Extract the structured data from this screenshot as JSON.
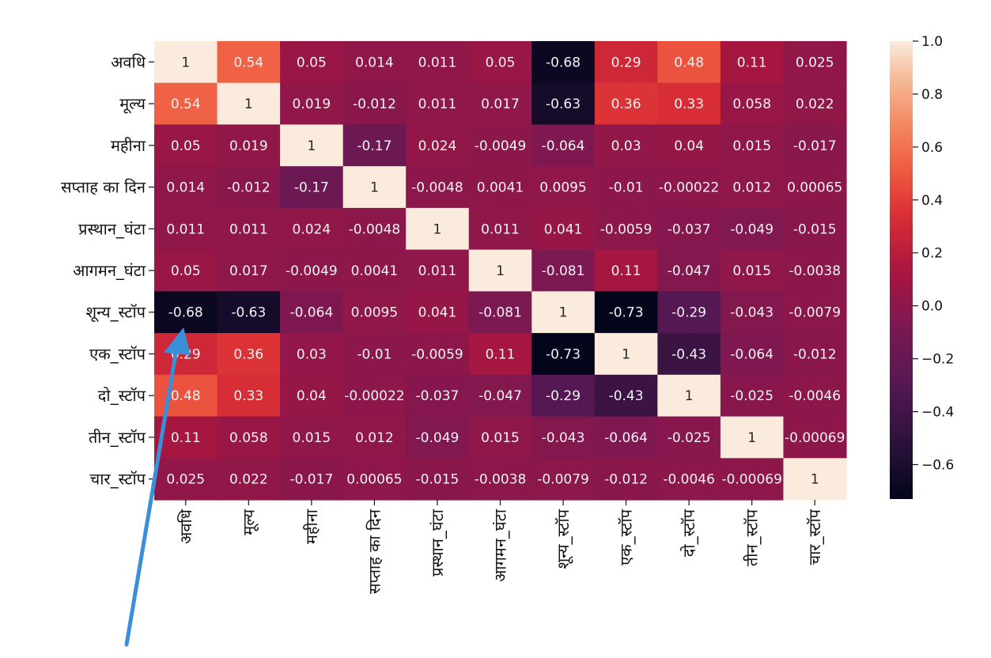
{
  "chart_data": {
    "type": "heatmap",
    "labels": [
      "अवधि",
      "मूल्य",
      "महीना",
      "सप्ताह का दिन",
      "प्रस्थान_घंटा",
      "आगमन_घंटा",
      "शून्य_स्टॉप",
      "एक_स्टॉप",
      "दो_स्टॉप",
      "तीन_स्टॉप",
      "चार_स्टॉप"
    ],
    "values": [
      [
        1,
        0.54,
        0.05,
        0.014,
        0.011,
        0.05,
        -0.68,
        0.29,
        0.48,
        0.11,
        0.025
      ],
      [
        0.54,
        1,
        0.019,
        -0.012,
        0.011,
        0.017,
        -0.63,
        0.36,
        0.33,
        0.058,
        0.022
      ],
      [
        0.05,
        0.019,
        1,
        -0.17,
        0.024,
        -0.0049,
        -0.064,
        0.03,
        0.04,
        0.015,
        -0.017
      ],
      [
        0.014,
        -0.012,
        -0.17,
        1,
        -0.0048,
        0.0041,
        0.0095,
        -0.01,
        -0.00022,
        0.012,
        0.00065
      ],
      [
        0.011,
        0.011,
        0.024,
        -0.0048,
        1,
        0.011,
        0.041,
        -0.0059,
        -0.037,
        -0.049,
        -0.015
      ],
      [
        0.05,
        0.017,
        -0.0049,
        0.0041,
        0.011,
        1,
        -0.081,
        0.11,
        -0.047,
        0.015,
        -0.0038
      ],
      [
        -0.68,
        -0.63,
        -0.064,
        0.0095,
        0.041,
        -0.081,
        1,
        -0.73,
        -0.29,
        -0.043,
        -0.0079
      ],
      [
        0.29,
        0.36,
        0.03,
        -0.01,
        -0.0059,
        0.11,
        -0.73,
        1,
        -0.43,
        -0.064,
        -0.012
      ],
      [
        0.48,
        0.33,
        0.04,
        -0.00022,
        -0.037,
        -0.047,
        -0.29,
        -0.43,
        1,
        -0.025,
        -0.0046
      ],
      [
        0.11,
        0.058,
        0.015,
        0.012,
        -0.049,
        0.015,
        -0.043,
        -0.064,
        -0.025,
        1,
        -0.00069
      ],
      [
        0.025,
        0.022,
        -0.017,
        0.00065,
        -0.015,
        -0.0038,
        -0.0079,
        -0.012,
        -0.0046,
        -0.00069,
        1
      ]
    ],
    "colorbar_ticks": [
      "1.0",
      "0.8",
      "0.6",
      "0.4",
      "0.2",
      "0.0",
      "−0.2",
      "−0.4",
      "−0.6"
    ],
    "colorbar_tick_values": [
      1.0,
      0.8,
      0.6,
      0.4,
      0.2,
      0.0,
      -0.2,
      -0.4,
      -0.6
    ],
    "vmin": -0.73,
    "vmax": 1.0,
    "colormap": "rocket",
    "annotation": {
      "type": "arrow",
      "color": "#3a8fd8",
      "points_to": "शून्य_स्टॉप × अवधि"
    }
  }
}
